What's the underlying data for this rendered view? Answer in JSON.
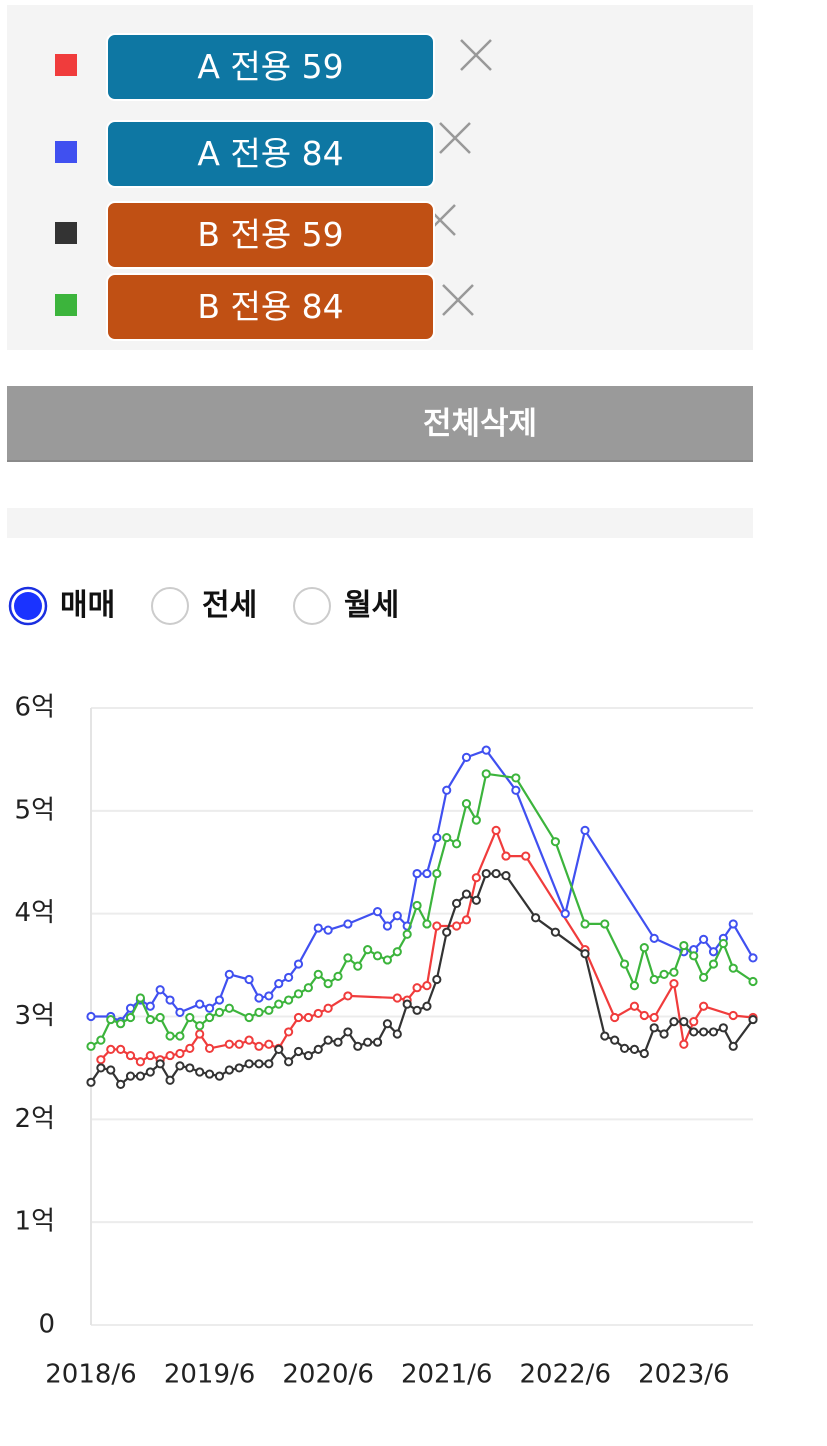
{
  "delete_all_button": "전체삭제",
  "radio": {
    "options": [
      "매매",
      "전세",
      "월세"
    ],
    "selected": "매매"
  },
  "chart_data": {
    "type": "line",
    "xlim": [
      "2018/6",
      "2024/1"
    ],
    "xticks": [
      "2018/6",
      "2019/6",
      "2020/6",
      "2021/6",
      "2022/6",
      "2023/6"
    ],
    "ylim": [
      0,
      6
    ],
    "yticks": [
      0,
      {
        "value": 1,
        "label": "1억"
      },
      {
        "value": 2,
        "label": "2억"
      },
      {
        "value": 3,
        "label": "3억"
      },
      {
        "value": 4,
        "label": "4억"
      },
      {
        "value": 5,
        "label": "5억"
      },
      {
        "value": 6,
        "label": "6억"
      }
    ],
    "grid": true,
    "series": [
      {
        "name": "A 전용 59",
        "color": "#f03c3c",
        "x": [
          "2018/7",
          "2018/8",
          "2018/9",
          "2018/10",
          "2018/11",
          "2018/12",
          "2019/1",
          "2019/2",
          "2019/3",
          "2019/4",
          "2019/5",
          "2019/6",
          "2019/8",
          "2019/9",
          "2019/10",
          "2019/11",
          "2019/12",
          "2020/1",
          "2020/2",
          "2020/3",
          "2020/4",
          "2020/5",
          "2020/6",
          "2020/8",
          "2021/1",
          "2021/2",
          "2021/3",
          "2021/4",
          "2021/5",
          "2021/7",
          "2021/8",
          "2021/9",
          "2021/11",
          "2021/12",
          "2022/2",
          "2022/8",
          "2022/11",
          "2023/1",
          "2023/2",
          "2023/3",
          "2023/5",
          "2023/6",
          "2023/7",
          "2023/8",
          "2023/11",
          "2024/1"
        ],
        "values": [
          2.58,
          2.68,
          2.68,
          2.62,
          2.56,
          2.62,
          2.58,
          2.62,
          2.64,
          2.69,
          2.83,
          2.69,
          2.73,
          2.73,
          2.77,
          2.71,
          2.73,
          2.69,
          2.85,
          2.99,
          2.99,
          3.03,
          3.08,
          3.2,
          3.18,
          3.16,
          3.28,
          3.3,
          3.88,
          3.88,
          3.94,
          4.35,
          4.81,
          4.56,
          4.56,
          3.65,
          2.99,
          3.1,
          3.01,
          2.99,
          3.32,
          2.73,
          2.95,
          3.1,
          3.01,
          2.99
        ]
      },
      {
        "name": "A 전용 84",
        "color": "#4050f0",
        "x": [
          "2018/6",
          "2018/8",
          "2018/9",
          "2018/10",
          "2018/11",
          "2018/12",
          "2019/1",
          "2019/2",
          "2019/3",
          "2019/5",
          "2019/6",
          "2019/7",
          "2019/8",
          "2019/10",
          "2019/11",
          "2019/12",
          "2020/1",
          "2020/2",
          "2020/3",
          "2020/5",
          "2020/6",
          "2020/8",
          "2020/11",
          "2020/12",
          "2021/1",
          "2021/2",
          "2021/3",
          "2021/4",
          "2021/5",
          "2021/6",
          "2021/8",
          "2021/10",
          "2022/1",
          "2022/6",
          "2022/8",
          "2023/3",
          "2023/6",
          "2023/7",
          "2023/8",
          "2023/9",
          "2023/10",
          "2023/11",
          "2024/1"
        ],
        "values": [
          3.0,
          3.0,
          2.95,
          3.08,
          3.16,
          3.1,
          3.26,
          3.16,
          3.04,
          3.12,
          3.08,
          3.16,
          3.41,
          3.36,
          3.18,
          3.2,
          3.32,
          3.38,
          3.51,
          3.86,
          3.84,
          3.9,
          4.02,
          3.88,
          3.98,
          3.88,
          4.39,
          4.39,
          4.74,
          5.2,
          5.52,
          5.59,
          5.2,
          4.0,
          4.81,
          3.76,
          3.63,
          3.65,
          3.75,
          3.63,
          3.76,
          3.9,
          3.57
        ]
      },
      {
        "name": "B 전용 59",
        "color": "#333333",
        "x": [
          "2018/6",
          "2018/7",
          "2018/8",
          "2018/9",
          "2018/10",
          "2018/11",
          "2018/12",
          "2019/1",
          "2019/2",
          "2019/3",
          "2019/4",
          "2019/5",
          "2019/6",
          "2019/7",
          "2019/8",
          "2019/9",
          "2019/10",
          "2019/11",
          "2019/12",
          "2020/1",
          "2020/2",
          "2020/3",
          "2020/4",
          "2020/5",
          "2020/6",
          "2020/7",
          "2020/8",
          "2020/9",
          "2020/10",
          "2020/11",
          "2020/12",
          "2021/1",
          "2021/2",
          "2021/3",
          "2021/4",
          "2021/5",
          "2021/6",
          "2021/7",
          "2021/8",
          "2021/9",
          "2021/10",
          "2021/11",
          "2021/12",
          "2022/3",
          "2022/5",
          "2022/8",
          "2022/10",
          "2022/11",
          "2022/12",
          "2023/1",
          "2023/2",
          "2023/3",
          "2023/4",
          "2023/5",
          "2023/6",
          "2023/7",
          "2023/8",
          "2023/9",
          "2023/10",
          "2023/11",
          "2024/1"
        ],
        "values": [
          2.36,
          2.5,
          2.48,
          2.34,
          2.42,
          2.42,
          2.46,
          2.54,
          2.38,
          2.52,
          2.5,
          2.46,
          2.44,
          2.42,
          2.48,
          2.5,
          2.54,
          2.54,
          2.54,
          2.68,
          2.56,
          2.66,
          2.62,
          2.68,
          2.77,
          2.75,
          2.85,
          2.71,
          2.75,
          2.75,
          2.93,
          2.83,
          3.12,
          3.06,
          3.1,
          3.36,
          3.82,
          4.1,
          4.19,
          4.13,
          4.39,
          4.39,
          4.37,
          3.96,
          3.82,
          3.61,
          2.81,
          2.77,
          2.69,
          2.68,
          2.64,
          2.89,
          2.83,
          2.95,
          2.95,
          2.85,
          2.85,
          2.85,
          2.89,
          2.71,
          2.97
        ]
      },
      {
        "name": "B 전용 84",
        "color": "#3cb43c",
        "x": [
          "2018/6",
          "2018/7",
          "2018/8",
          "2018/9",
          "2018/10",
          "2018/11",
          "2018/12",
          "2019/1",
          "2019/2",
          "2019/3",
          "2019/4",
          "2019/5",
          "2019/6",
          "2019/7",
          "2019/8",
          "2019/10",
          "2019/11",
          "2019/12",
          "2020/1",
          "2020/2",
          "2020/3",
          "2020/4",
          "2020/5",
          "2020/6",
          "2020/7",
          "2020/8",
          "2020/9",
          "2020/10",
          "2020/11",
          "2020/12",
          "2021/1",
          "2021/2",
          "2021/3",
          "2021/4",
          "2021/5",
          "2021/6",
          "2021/7",
          "2021/8",
          "2021/9",
          "2021/10",
          "2022/1",
          "2022/5",
          "2022/8",
          "2022/10",
          "2022/12",
          "2023/1",
          "2023/2",
          "2023/3",
          "2023/4",
          "2023/5",
          "2023/6",
          "2023/7",
          "2023/8",
          "2023/9",
          "2023/10",
          "2023/11",
          "2024/1"
        ],
        "values": [
          2.71,
          2.77,
          2.97,
          2.93,
          2.99,
          3.18,
          2.97,
          2.99,
          2.81,
          2.81,
          2.99,
          2.91,
          2.99,
          3.04,
          3.08,
          2.99,
          3.04,
          3.06,
          3.12,
          3.16,
          3.22,
          3.28,
          3.41,
          3.32,
          3.39,
          3.57,
          3.49,
          3.65,
          3.59,
          3.55,
          3.63,
          3.8,
          4.08,
          3.9,
          4.39,
          4.74,
          4.68,
          5.07,
          4.91,
          5.36,
          5.32,
          4.7,
          3.9,
          3.9,
          3.51,
          3.3,
          3.67,
          3.36,
          3.41,
          3.43,
          3.69,
          3.59,
          3.38,
          3.51,
          3.71,
          3.47,
          3.34
        ]
      }
    ]
  }
}
